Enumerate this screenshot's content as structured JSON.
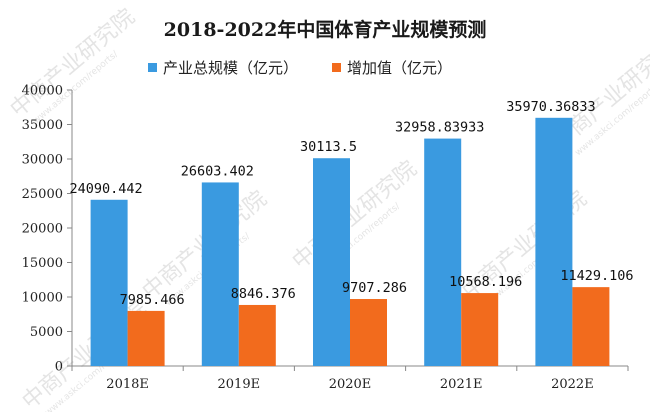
{
  "chart_data": {
    "type": "bar",
    "title": "2018-2022年中国体育产业规模预测",
    "categories": [
      "2018E",
      "2019E",
      "2020E",
      "2021E",
      "2022E"
    ],
    "series": [
      {
        "name": "产业总规模（亿元）",
        "color": "#3a9ae0",
        "values": [
          24090.442,
          26603.402,
          30113.5,
          32958.83933,
          35970.36833
        ],
        "labels": [
          "24090.442",
          "26603.402",
          "30113.5",
          "32958.83933",
          "35970.36833"
        ]
      },
      {
        "name": "增加值（亿元）",
        "color": "#f26b1d",
        "values": [
          7985.466,
          8846.376,
          9707.286,
          10568.196,
          11429.106
        ],
        "labels": [
          "7985.466",
          "8846.376",
          "9707.286",
          "10568.196",
          "11429.106"
        ]
      }
    ],
    "yticks": [
      "0",
      "5000",
      "10000",
      "15000",
      "20000",
      "25000",
      "30000",
      "35000",
      "40000"
    ],
    "ylim": [
      0,
      40000
    ],
    "grid": false,
    "legend_position": "top-center"
  },
  "watermark": {
    "text": "中商产业研究院",
    "url": "www.askci.com/reports/"
  }
}
